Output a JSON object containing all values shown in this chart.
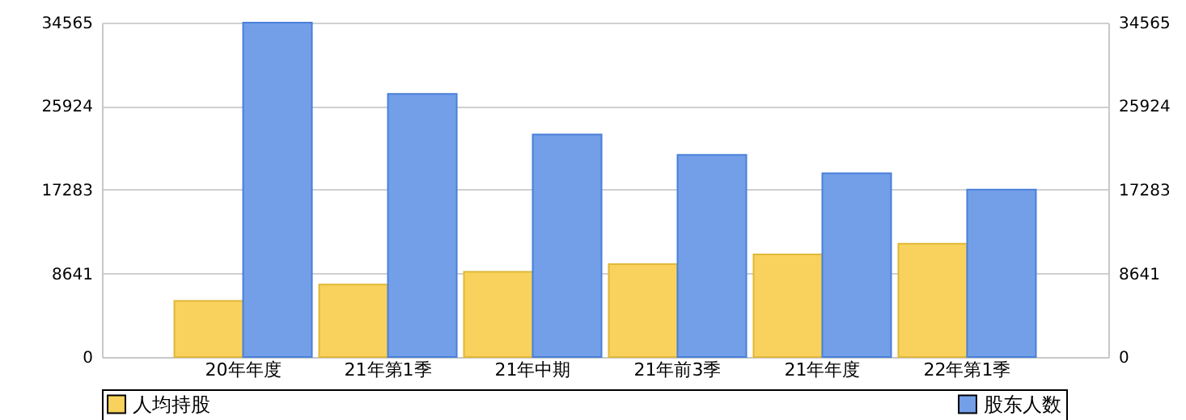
{
  "chart_data": {
    "type": "bar",
    "categories": [
      "20年年度",
      "21年第1季",
      "21年中期",
      "21年前3季",
      "21年年度",
      "22年第1季"
    ],
    "series": [
      {
        "name": "人均持股",
        "color": "#f8d25c",
        "values": [
          5800,
          7500,
          8800,
          9600,
          10600,
          11700
        ]
      },
      {
        "name": "股东人数",
        "color": "#739fe8",
        "values": [
          34565,
          27200,
          23000,
          20900,
          19000,
          17300
        ]
      }
    ],
    "ylim": [
      0,
      34565
    ],
    "yticks": [
      0,
      8641,
      17283,
      25924,
      34565
    ],
    "y2lim": [
      0,
      34565
    ],
    "y2ticks": [
      0,
      8641,
      17283,
      25924,
      34565
    ],
    "grid": true,
    "legend": "bottom"
  }
}
